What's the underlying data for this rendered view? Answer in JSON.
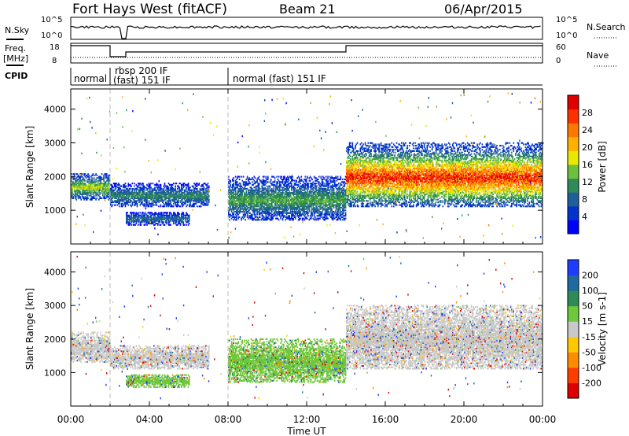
{
  "header": {
    "station": "Fort Hays West (fitACF)",
    "beam": "Beam 21",
    "date": "06/Apr/2015"
  },
  "strips": {
    "nsky": {
      "label": "N.Sky",
      "tick_top": "10^5",
      "tick_bottom": "10^0"
    },
    "nsearch": {
      "label": "N.Search",
      "tick_top": "10^5",
      "tick_bottom": "10^0"
    },
    "freq": {
      "label_top": "Freq.",
      "label_unit": "[MHz]",
      "tick_top": "18",
      "tick_bottom": "8"
    },
    "nave": {
      "label": "Nave",
      "tick_top": "60",
      "tick_bottom": "0"
    },
    "cpid": {
      "label": "CPID",
      "segments": [
        {
          "text": "normal",
          "start_hour": 0.0,
          "end_hour": 2.0
        },
        {
          "text": "rbsp 200 IF",
          "start_hour": 2.0,
          "end_hour": 2.6
        },
        {
          "text": "(fast) 151 IF",
          "start_hour": 2.0,
          "end_hour": 8.0
        },
        {
          "text": "normal (fast) 151 IF",
          "start_hour": 8.0,
          "end_hour": 24.0
        }
      ]
    }
  },
  "colorbars": {
    "power": {
      "label": "Power [dB]",
      "ticks": [
        "4",
        "8",
        "12",
        "16",
        "20",
        "24",
        "28"
      ],
      "colors": [
        "#0000ff",
        "#0033cc",
        "#1f5f99",
        "#2e8b57",
        "#6dbf3c",
        "#e8e800",
        "#ffb000",
        "#ff7700",
        "#ff3000",
        "#e00000"
      ]
    },
    "velocity": {
      "label": "Velocity [m s-1]",
      "ticks": [
        "200",
        "100",
        "50",
        "15",
        "-15",
        "-50",
        "-100",
        "-200"
      ],
      "colors": [
        "#1e3cff",
        "#1e6a9e",
        "#2e8b57",
        "#6dc83c",
        "#c8c8c8",
        "#ffc800",
        "#ff8c00",
        "#ff3c00",
        "#dc0000"
      ]
    }
  },
  "chart_data": [
    {
      "type": "heatmap",
      "title": "",
      "quantity": "Power",
      "units": "dB",
      "ylabel": "Slant Range [km]",
      "xlabel": "Time UT",
      "xlim_hours": [
        0,
        24
      ],
      "ylim_km": [
        0,
        4600
      ],
      "yticks": [
        1000,
        2000,
        3000,
        4000
      ],
      "xticks": [
        "00:00",
        "04:00",
        "08:00",
        "12:00",
        "16:00",
        "20:00",
        "00:00"
      ],
      "bands": [
        {
          "t0": 0.0,
          "t1": 2.0,
          "r0": 1300,
          "r1": 2100,
          "peak_db": 16
        },
        {
          "t0": 2.0,
          "t1": 7.0,
          "r0": 1100,
          "r1": 1800,
          "peak_db": 10
        },
        {
          "t0": 2.8,
          "t1": 6.0,
          "r0": 550,
          "r1": 950,
          "peak_db": 8
        },
        {
          "t0": 8.0,
          "t1": 14.0,
          "r0": 700,
          "r1": 2000,
          "peak_db": 12
        },
        {
          "t0": 14.0,
          "t1": 24.0,
          "r0": 1100,
          "r1": 3000,
          "peak_db": 28
        }
      ]
    },
    {
      "type": "heatmap",
      "title": "",
      "quantity": "Velocity",
      "units": "m s-1",
      "ylabel": "Slant Range [km]",
      "xlabel": "Time UT",
      "xlim_hours": [
        0,
        24
      ],
      "ylim_km": [
        0,
        4600
      ],
      "yticks": [
        1000,
        2000,
        3000,
        4000
      ],
      "xticks": [
        "00:00",
        "04:00",
        "08:00",
        "12:00",
        "16:00",
        "20:00",
        "00:00"
      ],
      "bands": [
        {
          "t0": 0.0,
          "t1": 2.0,
          "r0": 1300,
          "r1": 2200,
          "velocity": 0
        },
        {
          "t0": 2.0,
          "t1": 7.0,
          "r0": 1100,
          "r1": 1800,
          "velocity": 0
        },
        {
          "t0": 2.8,
          "t1": 6.0,
          "r0": 550,
          "r1": 950,
          "velocity": 30
        },
        {
          "t0": 8.0,
          "t1": 14.0,
          "r0": 700,
          "r1": 2000,
          "velocity": 30
        },
        {
          "t0": 14.0,
          "t1": 24.0,
          "r0": 1100,
          "r1": 3000,
          "velocity": 0
        }
      ]
    }
  ]
}
